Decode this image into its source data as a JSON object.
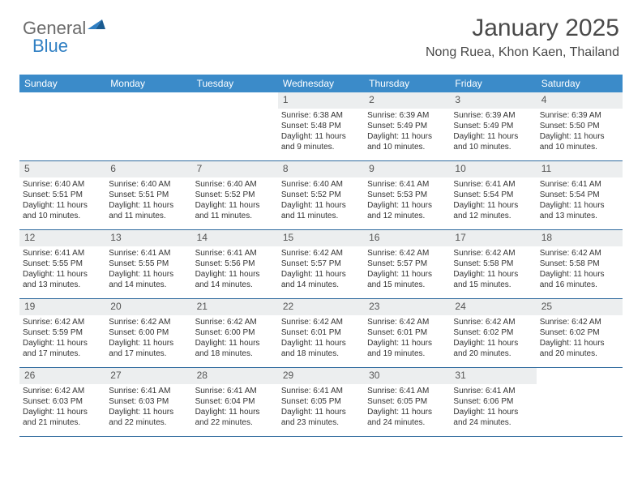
{
  "logo": {
    "part1": "General",
    "part2": "Blue"
  },
  "header": {
    "month": "January 2025",
    "location": "Nong Ruea, Khon Kaen, Thailand"
  },
  "colors": {
    "header_bg": "#3b8bc9",
    "header_text": "#ffffff",
    "daynum_bg": "#eceeef",
    "border": "#2f6a9e",
    "logo_gray": "#6b6b6b",
    "logo_blue": "#2f7fc3"
  },
  "day_headers": [
    "Sunday",
    "Monday",
    "Tuesday",
    "Wednesday",
    "Thursday",
    "Friday",
    "Saturday"
  ],
  "weeks": [
    [
      {
        "n": "",
        "sr": "",
        "ss": "",
        "dl": ""
      },
      {
        "n": "",
        "sr": "",
        "ss": "",
        "dl": ""
      },
      {
        "n": "",
        "sr": "",
        "ss": "",
        "dl": ""
      },
      {
        "n": "1",
        "sr": "Sunrise: 6:38 AM",
        "ss": "Sunset: 5:48 PM",
        "dl": "Daylight: 11 hours and 9 minutes."
      },
      {
        "n": "2",
        "sr": "Sunrise: 6:39 AM",
        "ss": "Sunset: 5:49 PM",
        "dl": "Daylight: 11 hours and 10 minutes."
      },
      {
        "n": "3",
        "sr": "Sunrise: 6:39 AM",
        "ss": "Sunset: 5:49 PM",
        "dl": "Daylight: 11 hours and 10 minutes."
      },
      {
        "n": "4",
        "sr": "Sunrise: 6:39 AM",
        "ss": "Sunset: 5:50 PM",
        "dl": "Daylight: 11 hours and 10 minutes."
      }
    ],
    [
      {
        "n": "5",
        "sr": "Sunrise: 6:40 AM",
        "ss": "Sunset: 5:51 PM",
        "dl": "Daylight: 11 hours and 10 minutes."
      },
      {
        "n": "6",
        "sr": "Sunrise: 6:40 AM",
        "ss": "Sunset: 5:51 PM",
        "dl": "Daylight: 11 hours and 11 minutes."
      },
      {
        "n": "7",
        "sr": "Sunrise: 6:40 AM",
        "ss": "Sunset: 5:52 PM",
        "dl": "Daylight: 11 hours and 11 minutes."
      },
      {
        "n": "8",
        "sr": "Sunrise: 6:40 AM",
        "ss": "Sunset: 5:52 PM",
        "dl": "Daylight: 11 hours and 11 minutes."
      },
      {
        "n": "9",
        "sr": "Sunrise: 6:41 AM",
        "ss": "Sunset: 5:53 PM",
        "dl": "Daylight: 11 hours and 12 minutes."
      },
      {
        "n": "10",
        "sr": "Sunrise: 6:41 AM",
        "ss": "Sunset: 5:54 PM",
        "dl": "Daylight: 11 hours and 12 minutes."
      },
      {
        "n": "11",
        "sr": "Sunrise: 6:41 AM",
        "ss": "Sunset: 5:54 PM",
        "dl": "Daylight: 11 hours and 13 minutes."
      }
    ],
    [
      {
        "n": "12",
        "sr": "Sunrise: 6:41 AM",
        "ss": "Sunset: 5:55 PM",
        "dl": "Daylight: 11 hours and 13 minutes."
      },
      {
        "n": "13",
        "sr": "Sunrise: 6:41 AM",
        "ss": "Sunset: 5:55 PM",
        "dl": "Daylight: 11 hours and 14 minutes."
      },
      {
        "n": "14",
        "sr": "Sunrise: 6:41 AM",
        "ss": "Sunset: 5:56 PM",
        "dl": "Daylight: 11 hours and 14 minutes."
      },
      {
        "n": "15",
        "sr": "Sunrise: 6:42 AM",
        "ss": "Sunset: 5:57 PM",
        "dl": "Daylight: 11 hours and 14 minutes."
      },
      {
        "n": "16",
        "sr": "Sunrise: 6:42 AM",
        "ss": "Sunset: 5:57 PM",
        "dl": "Daylight: 11 hours and 15 minutes."
      },
      {
        "n": "17",
        "sr": "Sunrise: 6:42 AM",
        "ss": "Sunset: 5:58 PM",
        "dl": "Daylight: 11 hours and 15 minutes."
      },
      {
        "n": "18",
        "sr": "Sunrise: 6:42 AM",
        "ss": "Sunset: 5:58 PM",
        "dl": "Daylight: 11 hours and 16 minutes."
      }
    ],
    [
      {
        "n": "19",
        "sr": "Sunrise: 6:42 AM",
        "ss": "Sunset: 5:59 PM",
        "dl": "Daylight: 11 hours and 17 minutes."
      },
      {
        "n": "20",
        "sr": "Sunrise: 6:42 AM",
        "ss": "Sunset: 6:00 PM",
        "dl": "Daylight: 11 hours and 17 minutes."
      },
      {
        "n": "21",
        "sr": "Sunrise: 6:42 AM",
        "ss": "Sunset: 6:00 PM",
        "dl": "Daylight: 11 hours and 18 minutes."
      },
      {
        "n": "22",
        "sr": "Sunrise: 6:42 AM",
        "ss": "Sunset: 6:01 PM",
        "dl": "Daylight: 11 hours and 18 minutes."
      },
      {
        "n": "23",
        "sr": "Sunrise: 6:42 AM",
        "ss": "Sunset: 6:01 PM",
        "dl": "Daylight: 11 hours and 19 minutes."
      },
      {
        "n": "24",
        "sr": "Sunrise: 6:42 AM",
        "ss": "Sunset: 6:02 PM",
        "dl": "Daylight: 11 hours and 20 minutes."
      },
      {
        "n": "25",
        "sr": "Sunrise: 6:42 AM",
        "ss": "Sunset: 6:02 PM",
        "dl": "Daylight: 11 hours and 20 minutes."
      }
    ],
    [
      {
        "n": "26",
        "sr": "Sunrise: 6:42 AM",
        "ss": "Sunset: 6:03 PM",
        "dl": "Daylight: 11 hours and 21 minutes."
      },
      {
        "n": "27",
        "sr": "Sunrise: 6:41 AM",
        "ss": "Sunset: 6:03 PM",
        "dl": "Daylight: 11 hours and 22 minutes."
      },
      {
        "n": "28",
        "sr": "Sunrise: 6:41 AM",
        "ss": "Sunset: 6:04 PM",
        "dl": "Daylight: 11 hours and 22 minutes."
      },
      {
        "n": "29",
        "sr": "Sunrise: 6:41 AM",
        "ss": "Sunset: 6:05 PM",
        "dl": "Daylight: 11 hours and 23 minutes."
      },
      {
        "n": "30",
        "sr": "Sunrise: 6:41 AM",
        "ss": "Sunset: 6:05 PM",
        "dl": "Daylight: 11 hours and 24 minutes."
      },
      {
        "n": "31",
        "sr": "Sunrise: 6:41 AM",
        "ss": "Sunset: 6:06 PM",
        "dl": "Daylight: 11 hours and 24 minutes."
      },
      {
        "n": "",
        "sr": "",
        "ss": "",
        "dl": ""
      }
    ]
  ]
}
